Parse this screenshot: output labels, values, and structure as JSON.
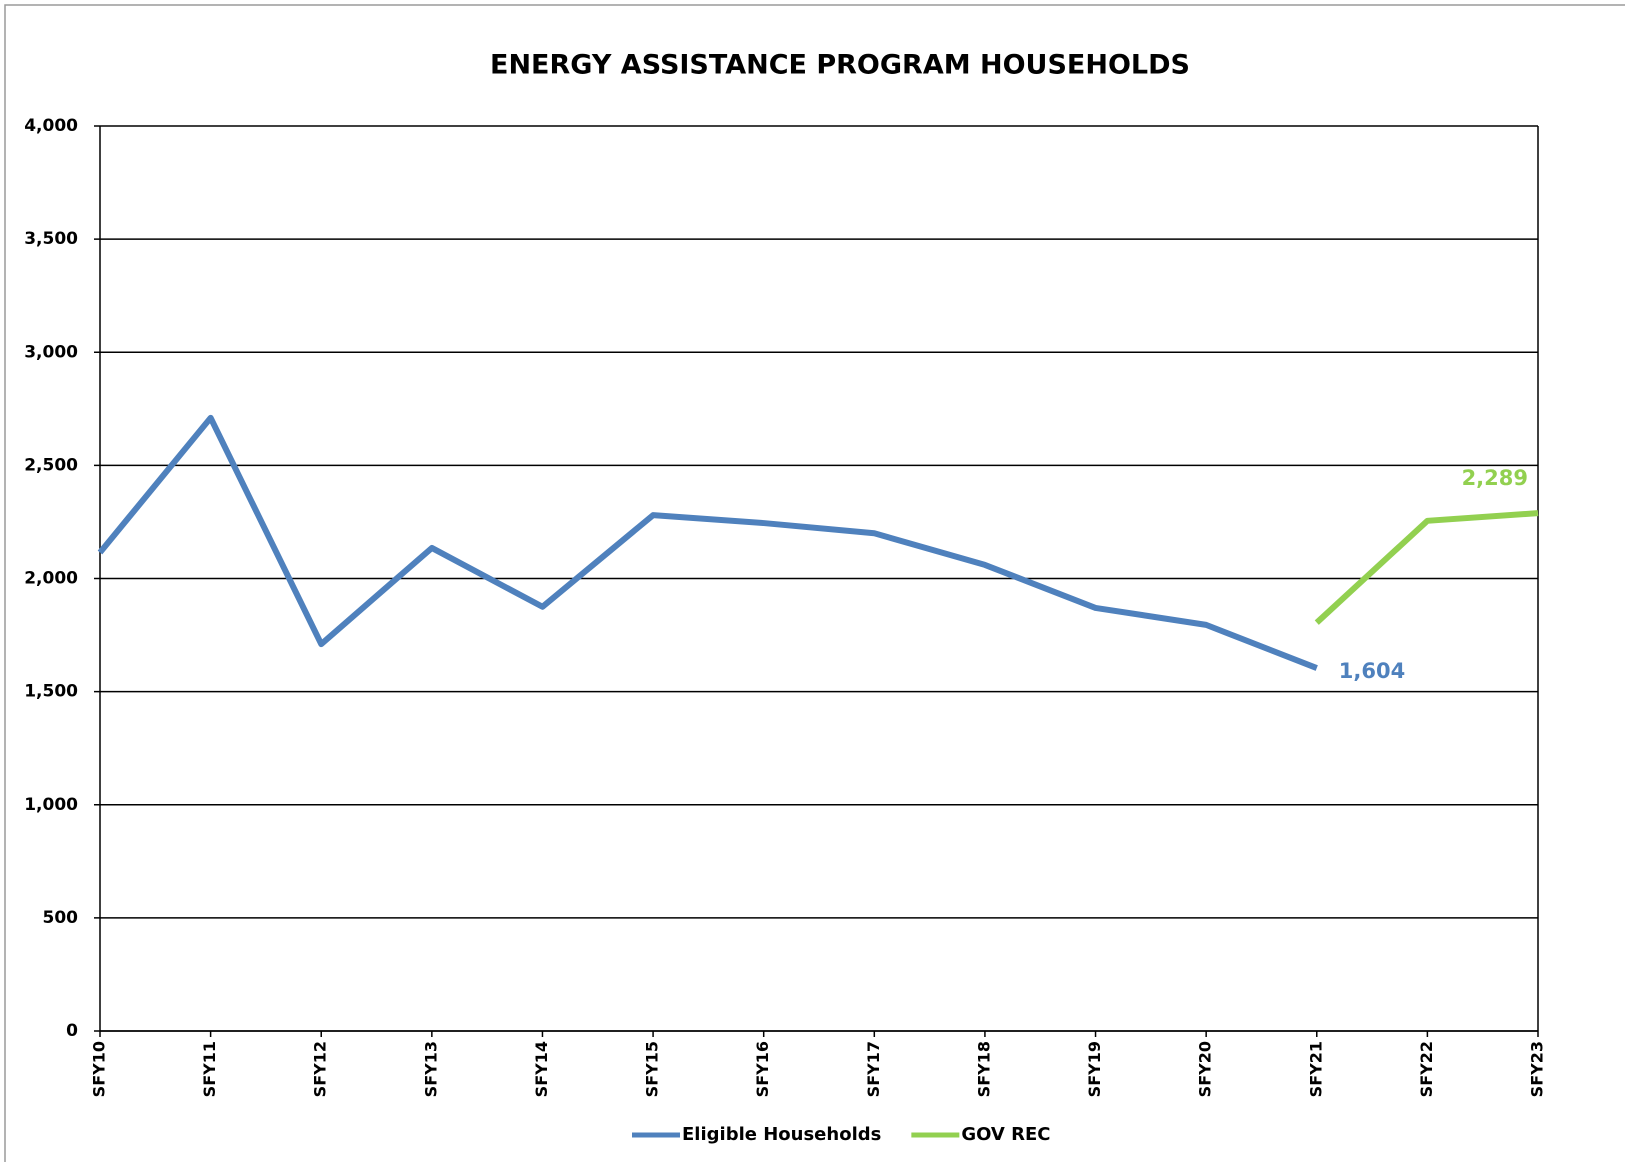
{
  "chart_data": {
    "type": "line",
    "title": "ENERGY ASSISTANCE PROGRAM HOUSEHOLDS",
    "categories": [
      "SFY10",
      "SFY11",
      "SFY12",
      "SFY13",
      "SFY14",
      "SFY15",
      "SFY16",
      "SFY17",
      "SFY18",
      "SFY19",
      "SFY20",
      "SFY21",
      "SFY22",
      "SFY23"
    ],
    "series": [
      {
        "name": "Eligible Households",
        "color": "#4f81bd",
        "values": [
          2115,
          2710,
          1710,
          2135,
          1875,
          2280,
          2245,
          2200,
          2060,
          1870,
          1795,
          1604,
          null,
          null
        ],
        "value_labels": [
          null,
          null,
          null,
          null,
          null,
          null,
          null,
          null,
          null,
          null,
          null,
          "1,604",
          null,
          null
        ]
      },
      {
        "name": "GOV REC",
        "color": "#92d050",
        "values": [
          null,
          null,
          null,
          null,
          null,
          null,
          null,
          null,
          null,
          null,
          null,
          1805,
          2255,
          2289
        ],
        "value_labels": [
          null,
          null,
          null,
          null,
          null,
          null,
          null,
          null,
          null,
          null,
          null,
          null,
          null,
          "2,289"
        ]
      }
    ],
    "ylim": [
      0,
      4000
    ],
    "yticks": [
      0,
      500,
      {
        "value": 1000,
        "label": "1,000"
      },
      {
        "value": 1500,
        "label": "1,500"
      },
      {
        "value": 2000,
        "label": "2,000"
      },
      {
        "value": 2500,
        "label": "2,500"
      },
      {
        "value": 3000,
        "label": "3,000"
      },
      {
        "value": 3500,
        "label": "3,500"
      },
      {
        "value": 4000,
        "label": "4,000"
      }
    ],
    "grid": true,
    "legend": "bottom"
  }
}
